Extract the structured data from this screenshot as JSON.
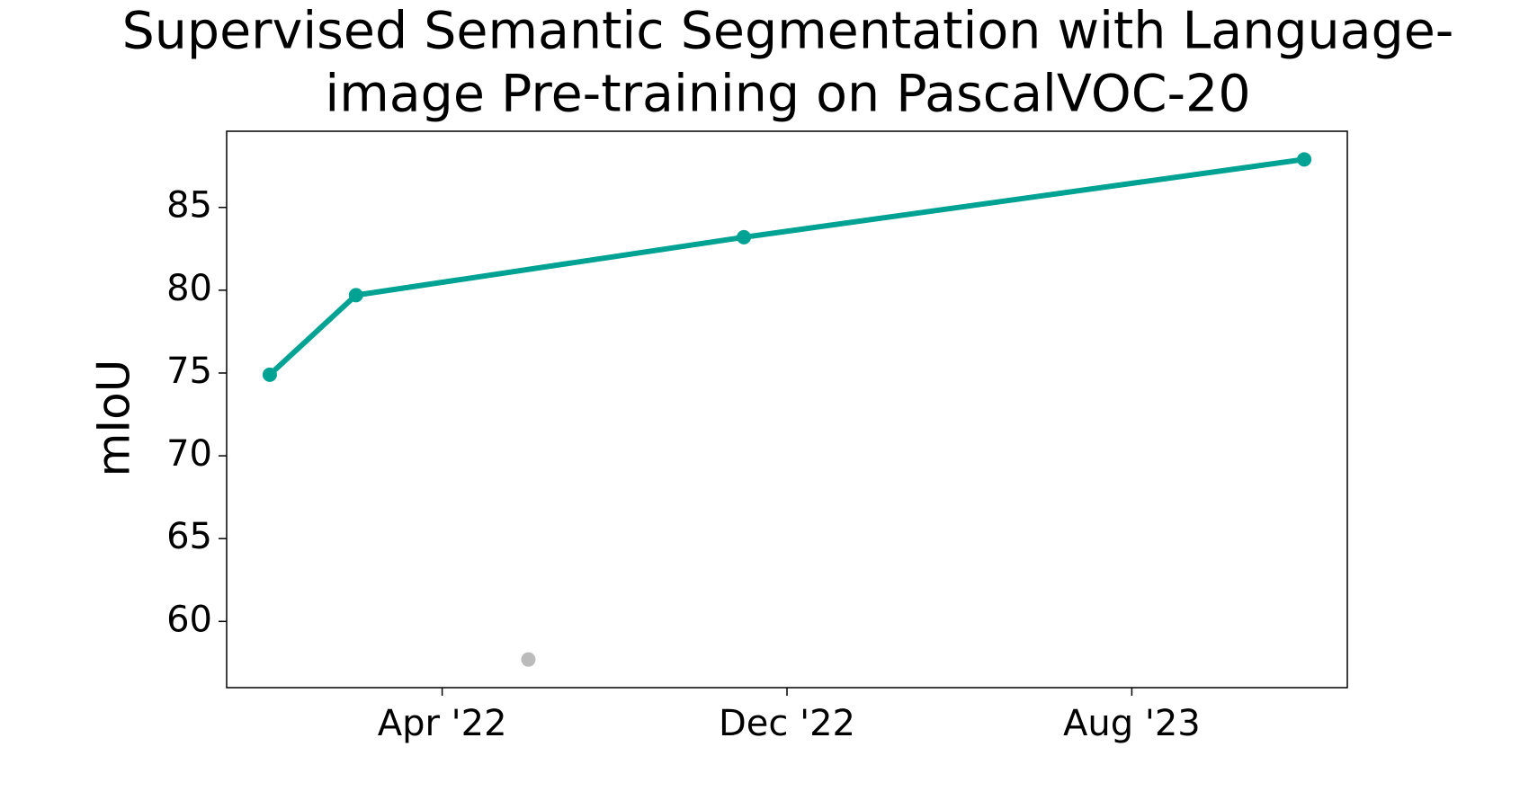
{
  "chart_data": {
    "type": "line",
    "title_lines": [
      "Supervised Semantic Segmentation with Language-",
      "image Pre-training on PascalVOC-20"
    ],
    "ylabel": "mIoU",
    "series": [
      {
        "color": "#00a393",
        "line": true,
        "x": [
          "2021-12",
          "2022-02",
          "2022-11",
          "2023-12"
        ],
        "values": [
          74.9,
          79.7,
          83.2,
          87.9
        ]
      },
      {
        "color": "#bbbbbb",
        "line": false,
        "x": [
          "2022-06"
        ],
        "values": [
          57.7
        ]
      }
    ],
    "xlim": [
      "2021-11",
      "2024-01"
    ],
    "xticks": [
      {
        "value": "2022-04",
        "label": "Apr '22"
      },
      {
        "value": "2022-12",
        "label": "Dec '22"
      },
      {
        "value": "2023-08",
        "label": "Aug '23"
      }
    ],
    "ylim": [
      56.0,
      89.6
    ],
    "yticks": [
      60,
      65,
      70,
      75,
      80,
      85
    ]
  }
}
